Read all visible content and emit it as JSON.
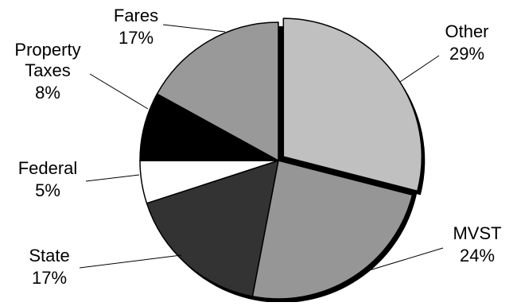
{
  "chart_data": {
    "type": "pie",
    "title": "",
    "categories": [
      "Other",
      "MVST",
      "State",
      "Federal",
      "Property Taxes",
      "Fares"
    ],
    "values": [
      29,
      24,
      17,
      5,
      8,
      17
    ],
    "value_labels": [
      "29%",
      "24%",
      "17%",
      "5%",
      "8%",
      "17%"
    ],
    "label_lines": [
      [
        "Other"
      ],
      [
        "MVST"
      ],
      [
        "State"
      ],
      [
        "Federal"
      ],
      [
        "Property",
        "Taxes"
      ],
      [
        "Fares"
      ]
    ],
    "colors": [
      "#c0c0c0",
      "#969696",
      "#333333",
      "#ffffff",
      "#000000",
      "#999999"
    ],
    "slice_edge": "#000000",
    "pie_shadow": "#000000",
    "exploded": "Other",
    "start": "12 o'clock, clockwise",
    "legend": "none"
  }
}
